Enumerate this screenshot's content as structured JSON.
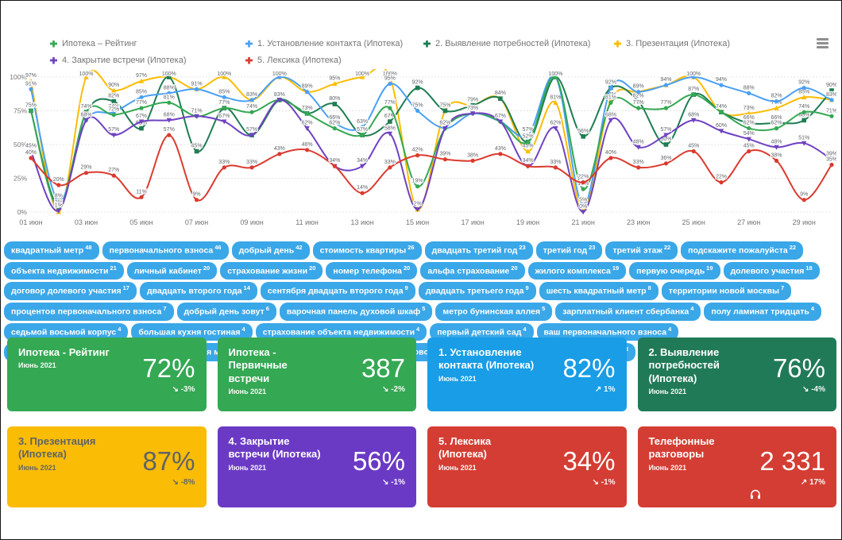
{
  "legend": {
    "items": [
      {
        "label": "Ипотека – Рейтинг",
        "color": "#34a853"
      },
      {
        "label": "1. Установление контакта (Ипотека)",
        "color": "#4aa0f5"
      },
      {
        "label": "2. Выявление потребностей (Ипотека)",
        "color": "#1e7d52"
      },
      {
        "label": "3. Презентация (Ипотека)",
        "color": "#fbbc04"
      },
      {
        "label": "4. Закрытие встречи (Ипотека)",
        "color": "#6f42c1"
      },
      {
        "label": "5. Лексика (Ипотека)",
        "color": "#db3a2f"
      }
    ]
  },
  "chart_data": {
    "type": "line",
    "title": "",
    "xlabel": "",
    "ylabel": "",
    "ylim": [
      0,
      100
    ],
    "grid": true,
    "legend_position": "top",
    "y_tick_labels": [
      "0%",
      "25%",
      "50%",
      "75%",
      "100%"
    ],
    "categories": [
      "01 июн",
      "02 июн",
      "03 июн",
      "04 июн",
      "05 июн",
      "06 июн",
      "07 июн",
      "08 июн",
      "09 июн",
      "10 июн",
      "11 июн",
      "12 июн",
      "13 июн",
      "14 июн",
      "15 июн",
      "16 июн",
      "17 июн",
      "18 июн",
      "19 июн",
      "20 июн",
      "21 июн",
      "22 июн",
      "23 июн",
      "24 июн",
      "25 июн",
      "26 июн",
      "27 июн",
      "28 июн",
      "29 июн",
      "30 июн"
    ],
    "x_ticks_shown": [
      "01 июн",
      "03 июн",
      "05 июн",
      "07 июн",
      "09 июн",
      "11 июн",
      "13 июн",
      "15 июн",
      "17 июн",
      "19 июн",
      "21 июн",
      "23 июн",
      "25 июн",
      "27 июн",
      "29 июн"
    ],
    "series": [
      {
        "name": "Ипотека – Рейтинг",
        "color": "#34a853",
        "marker": "circle",
        "values": [
          75,
          3,
          74,
          72,
          77,
          81,
          71,
          77,
          74,
          83,
          73,
          62,
          57,
          77,
          19,
          62,
          73,
          67,
          52,
          100,
          17,
          81,
          77,
          77,
          87,
          74,
          62,
          62,
          74,
          71
        ]
      },
      {
        "name": "1. Установление контакта (Ипотека)",
        "color": "#4aa0f5",
        "marker": "circle",
        "values": [
          91,
          8,
          68,
          74,
          85,
          88,
          91,
          85,
          83,
          100,
          89,
          66,
          63,
          95,
          75,
          62,
          73,
          67,
          57,
          100,
          5,
          92,
          89,
          94,
          100,
          94,
          88,
          82,
          92,
          83
        ]
      },
      {
        "name": "2. Выявление потребностей (Ипотека)",
        "color": "#1e7d52",
        "marker": "square",
        "values": [
          75,
          5,
          74,
          82,
          62,
          100,
          45,
          77,
          57,
          83,
          73,
          80,
          57,
          67,
          92,
          75,
          79,
          84,
          52,
          100,
          56,
          92,
          82,
          50,
          87,
          74,
          66,
          66,
          68,
          90
        ]
      },
      {
        "name": "3. Презентация (Ипотека)",
        "color": "#fbbc04",
        "marker": "triangle",
        "values": [
          97,
          0,
          100,
          90,
          97,
          100,
          91,
          100,
          83,
          100,
          89,
          95,
          100,
          100,
          2,
          75,
          79,
          84,
          45,
          81,
          2,
          83,
          89,
          94,
          100,
          74,
          73,
          77,
          85,
          83
        ]
      },
      {
        "name": "4. Закрытие встречи (Ипотека)",
        "color": "#6f42c1",
        "marker": "triangle-down",
        "values": [
          45,
          1,
          68,
          57,
          67,
          68,
          71,
          67,
          57,
          83,
          62,
          34,
          34,
          58,
          2,
          62,
          73,
          67,
          34,
          62,
          0,
          68,
          48,
          57,
          68,
          60,
          54,
          48,
          51,
          39
        ]
      },
      {
        "name": "5. Лексика (Ипотека)",
        "color": "#db3a2f",
        "marker": "circle",
        "values": [
          40,
          20,
          29,
          27,
          11,
          57,
          9,
          33,
          33,
          43,
          46,
          34,
          14,
          33,
          42,
          39,
          38,
          43,
          34,
          33,
          22,
          40,
          33,
          36,
          45,
          22,
          45,
          38,
          9,
          35
        ]
      }
    ]
  },
  "keywords": [
    {
      "text": "квадратный метр",
      "count": 48
    },
    {
      "text": "первоначального взноса",
      "count": 46
    },
    {
      "text": "добрый день",
      "count": 42
    },
    {
      "text": "стоимость квартиры",
      "count": 26
    },
    {
      "text": "двадцать третий год",
      "count": 23
    },
    {
      "text": "третий год",
      "count": 23
    },
    {
      "text": "третий этаж",
      "count": 22
    },
    {
      "text": "подскажите пожалуйста",
      "count": 22
    },
    {
      "text": "объекта недвижимости",
      "count": 21
    },
    {
      "text": "личный кабинет",
      "count": 20
    },
    {
      "text": "страхование жизни",
      "count": 20
    },
    {
      "text": "номер телефона",
      "count": 20
    },
    {
      "text": "альфа страхование",
      "count": 20
    },
    {
      "text": "жилого комплекса",
      "count": 19
    },
    {
      "text": "первую очередь",
      "count": 19
    },
    {
      "text": "долевого участия",
      "count": 18
    },
    {
      "text": "договор долевого участия",
      "count": 17
    },
    {
      "text": "двадцать второго года",
      "count": 14
    },
    {
      "text": "сентября двадцать второго года",
      "count": 9
    },
    {
      "text": "двадцать третьего года",
      "count": 9
    },
    {
      "text": "шесть квадратный метр",
      "count": 8
    },
    {
      "text": "территории новой москвы",
      "count": 7
    },
    {
      "text": "процентов первоначального взноса",
      "count": 7
    },
    {
      "text": "добрый день зовут",
      "count": 6
    },
    {
      "text": "варочная панель духовой шкаф",
      "count": 5
    },
    {
      "text": "метро бунинская аллея",
      "count": 5
    },
    {
      "text": "зарплатный клиент сбербанка",
      "count": 4
    },
    {
      "text": "полу ламинат тридцать",
      "count": 4
    },
    {
      "text": "седьмой восьмой корпус",
      "count": 4
    },
    {
      "text": "большая кухня гостиная",
      "count": 4
    },
    {
      "text": "страхование объекта недвижимости",
      "count": 4
    },
    {
      "text": "первый детский сад",
      "count": 4
    },
    {
      "text": "ваш первоначального взноса",
      "count": 4
    },
    {
      "text": "варочная панель духовой шкаф посудомоечная машина",
      "count": 3
    },
    {
      "text": "холодильник варочная панель духовой шкаф",
      "count": 3
    },
    {
      "text": "двадцать шесть квадратный метр",
      "count": 3
    }
  ],
  "cards": [
    {
      "title": "Ипотека - Рейтинг",
      "period": "Июнь 2021",
      "value": "72%",
      "trend": "↘ -3%",
      "bg": "#34a853",
      "fg": "#ffffff"
    },
    {
      "title": "Ипотека - Первичные встречи",
      "period": "Июнь 2021",
      "value": "387",
      "trend": "↘ -2%",
      "bg": "#34a853",
      "fg": "#ffffff"
    },
    {
      "title": "1. Установление контакта (Ипотека)",
      "period": "Июнь 2021",
      "value": "82%",
      "trend": "↗ 1%",
      "bg": "#189de6",
      "fg": "#ffffff"
    },
    {
      "title": "2. Выявление потребностей (Ипотека)",
      "period": "Июнь 2021",
      "value": "76%",
      "trend": "↘ -4%",
      "bg": "#217a57",
      "fg": "#ffffff"
    },
    {
      "title": "3. Презентация (Ипотека)",
      "period": "Июнь 2021",
      "value": "87%",
      "trend": "↘ -8%",
      "bg": "#fbbc05",
      "fg": "#5f6368"
    },
    {
      "title": "4. Закрытие встречи (Ипотека)",
      "period": "Июнь 2021",
      "value": "56%",
      "trend": "↘ -1%",
      "bg": "#6b3ac5",
      "fg": "#ffffff"
    },
    {
      "title": "5. Лексика (Ипотека)",
      "period": "Июнь 2021",
      "value": "34%",
      "trend": "↘ -1%",
      "bg": "#d43d33",
      "fg": "#ffffff"
    },
    {
      "title": "Телефонные разговоры",
      "period": "Июнь 2021",
      "value": "2 331",
      "trend": "↗ 17%",
      "bg": "#d43d33",
      "fg": "#ffffff",
      "icon": "headphones"
    }
  ],
  "colors": {
    "chip_bg": "#3aa7e8",
    "axis_text": "#757575",
    "data_label": "#5f6368",
    "gridline": "#e4e4e4"
  }
}
